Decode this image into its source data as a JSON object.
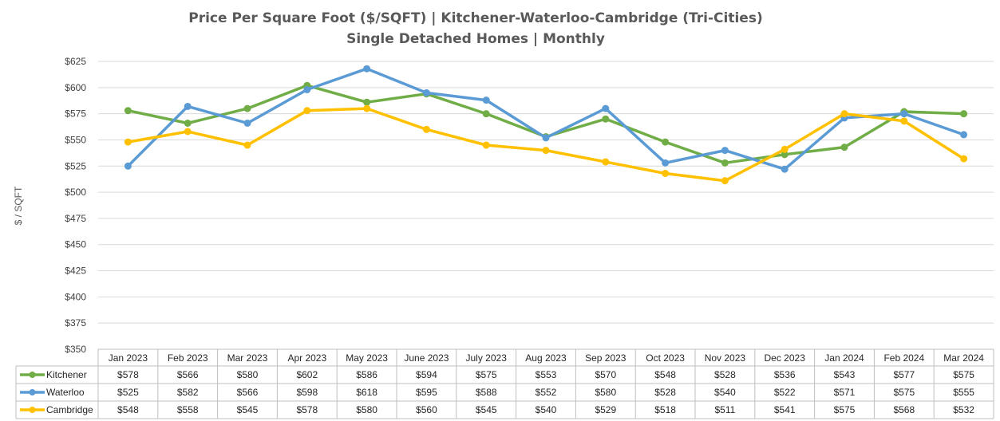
{
  "chart_data": {
    "type": "line",
    "title": "Price Per Square Foot ($/SQFT) | Kitchener-Waterloo-Cambridge (Tri-Cities)",
    "subtitle": "Single Detached Homes | Monthly",
    "ylabel": "$ / SQFT",
    "xlabel": "",
    "ylim": [
      350,
      625
    ],
    "y_ticks": [
      350,
      375,
      400,
      425,
      450,
      475,
      500,
      525,
      550,
      575,
      600,
      625
    ],
    "y_tick_labels": [
      "$350",
      "$375",
      "$400",
      "$425",
      "$450",
      "$475",
      "$500",
      "$525",
      "$550",
      "$575",
      "$600",
      "$625"
    ],
    "grid": true,
    "legend": "data-table-below",
    "categories": [
      "Jan 2023",
      "Feb 2023",
      "Mar 2023",
      "Apr 2023",
      "May 2023",
      "June 2023",
      "July 2023",
      "Aug 2023",
      "Sep 2023",
      "Oct 2023",
      "Nov 2023",
      "Dec 2023",
      "Jan 2024",
      "Feb 2024",
      "Mar 2024"
    ],
    "series": [
      {
        "name": "Kitchener",
        "color": "#70AD47",
        "values": [
          578,
          566,
          580,
          602,
          586,
          594,
          575,
          553,
          570,
          548,
          528,
          536,
          543,
          577,
          575
        ],
        "labels": [
          "$578",
          "$566",
          "$580",
          "$602",
          "$586",
          "$594",
          "$575",
          "$553",
          "$570",
          "$548",
          "$528",
          "$536",
          "$543",
          "$577",
          "$575"
        ]
      },
      {
        "name": "Waterloo",
        "color": "#5B9BD5",
        "values": [
          525,
          582,
          566,
          598,
          618,
          595,
          588,
          552,
          580,
          528,
          540,
          522,
          571,
          575,
          555
        ],
        "labels": [
          "$525",
          "$582",
          "$566",
          "$598",
          "$618",
          "$595",
          "$588",
          "$552",
          "$580",
          "$528",
          "$540",
          "$522",
          "$571",
          "$575",
          "$555"
        ]
      },
      {
        "name": "Cambridge",
        "color": "#FFC000",
        "values": [
          548,
          558,
          545,
          578,
          580,
          560,
          545,
          540,
          529,
          518,
          511,
          541,
          575,
          568,
          532
        ],
        "labels": [
          "$548",
          "$558",
          "$545",
          "$578",
          "$580",
          "$560",
          "$545",
          "$540",
          "$529",
          "$518",
          "$511",
          "$541",
          "$575",
          "$568",
          "$532"
        ]
      }
    ]
  }
}
